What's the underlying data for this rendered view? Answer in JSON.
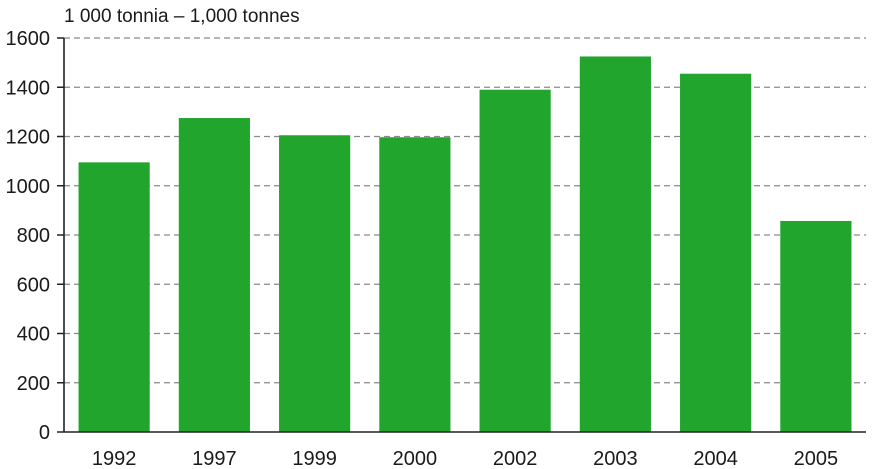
{
  "chart_data": {
    "type": "bar",
    "unit_label": "1 000 tonnia – 1,000 tonnes",
    "categories": [
      "1992",
      "1997",
      "1999",
      "2000",
      "2002",
      "2003",
      "2004",
      "2005"
    ],
    "values": [
      1095,
      1275,
      1205,
      1197,
      1390,
      1525,
      1455,
      857
    ],
    "ylim": [
      0,
      1600
    ],
    "yticks": [
      0,
      200,
      400,
      600,
      800,
      1000,
      1200,
      1400,
      1600
    ],
    "grid": true,
    "bar_color": "#21a52d",
    "grid_color": "#8a8a8a",
    "axis_color": "#222222"
  }
}
